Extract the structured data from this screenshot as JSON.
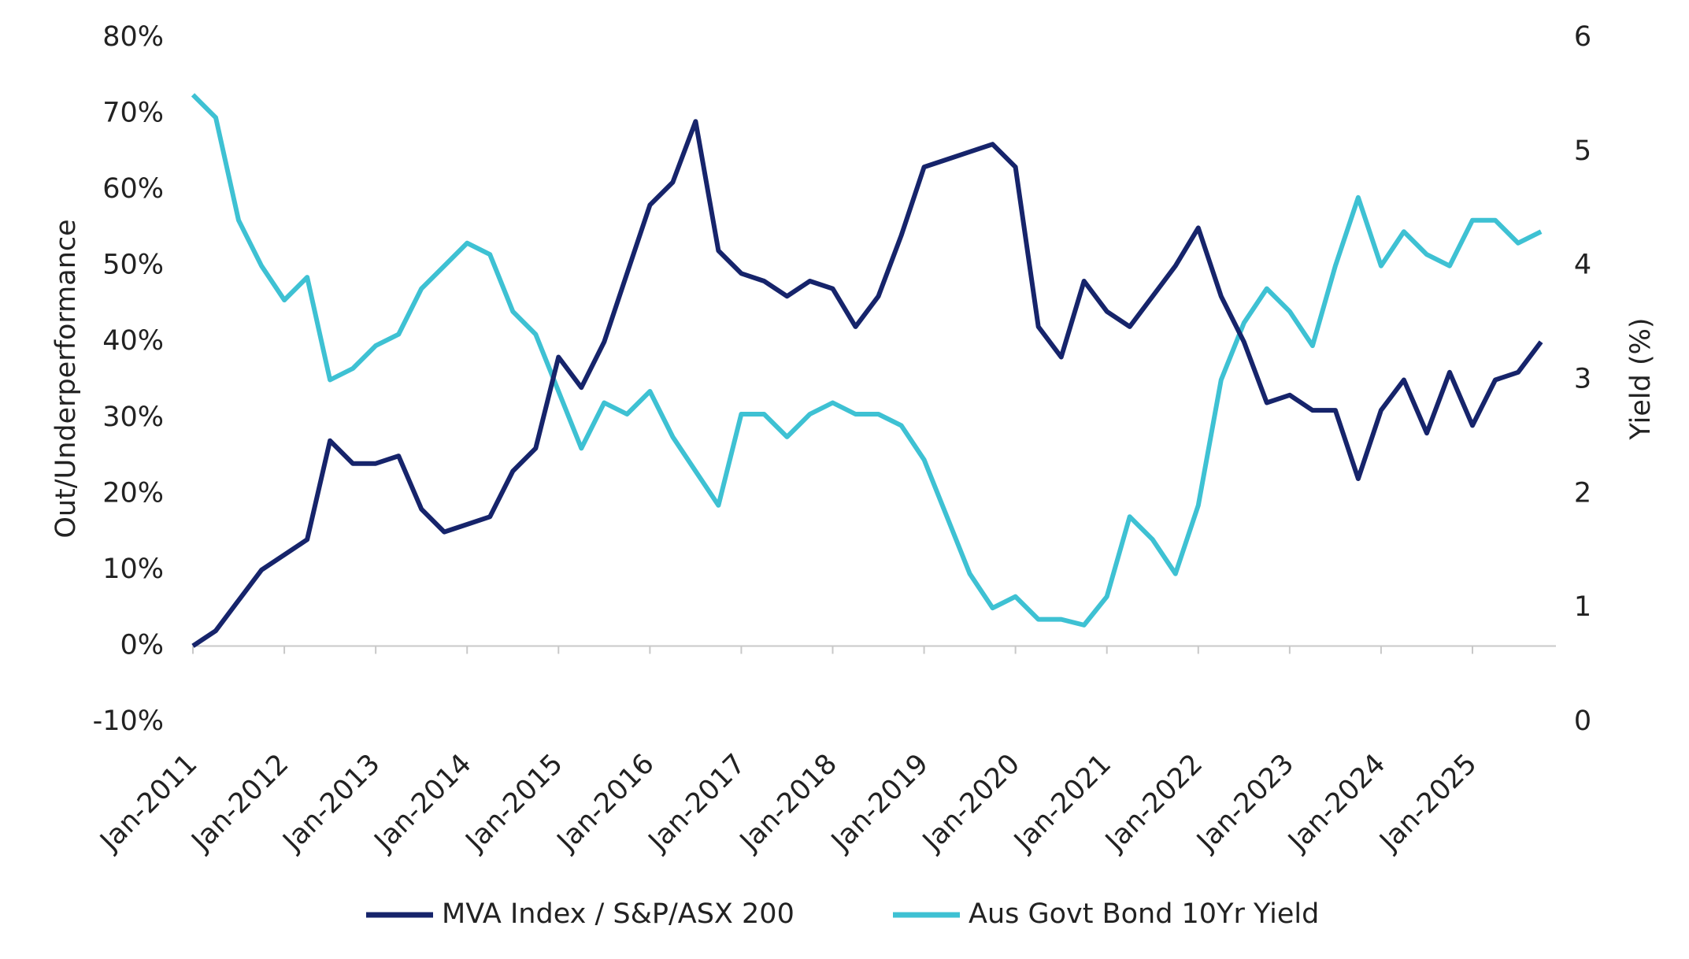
{
  "chart_data": {
    "type": "line",
    "categories": [
      "Jan-2011",
      null,
      null,
      null,
      "Jan-2012",
      null,
      null,
      null,
      "Jan-2013",
      null,
      null,
      null,
      "Jan-2014",
      null,
      null,
      null,
      "Jan-2015",
      null,
      null,
      null,
      "Jan-2016",
      null,
      null,
      null,
      "Jan-2017",
      null,
      null,
      null,
      "Jan-2018",
      null,
      null,
      null,
      "Jan-2019",
      null,
      null,
      null,
      "Jan-2020",
      null,
      null,
      null,
      "Jan-2021",
      null,
      null,
      null,
      "Jan-2022",
      null,
      null,
      null,
      "Jan-2023",
      null,
      null,
      null,
      "Jan-2024",
      null,
      null,
      null,
      "Jan-2025",
      null,
      null,
      null
    ],
    "y_label": "Out/Underperformance",
    "y2_label": "Yield (%)",
    "ylim": [
      -10,
      80
    ],
    "yticks": [
      {
        "value": -10,
        "label": "-10%"
      },
      {
        "value": 0,
        "label": "0%"
      },
      {
        "value": 10,
        "label": "10%"
      },
      {
        "value": 20,
        "label": "20%"
      },
      {
        "value": 30,
        "label": "30%"
      },
      {
        "value": 40,
        "label": "40%"
      },
      {
        "value": 50,
        "label": "50%"
      },
      {
        "value": 60,
        "label": "60%"
      },
      {
        "value": 70,
        "label": "70%"
      },
      {
        "value": 80,
        "label": "80%"
      }
    ],
    "y2lim": [
      0,
      6
    ],
    "y2ticks": [
      0,
      1,
      2,
      3,
      4,
      5,
      6
    ],
    "legend": "bottom",
    "series": [
      {
        "name": "MVA Index / S&P/ASX 200",
        "color": "#16246b",
        "values": [
          0,
          2,
          6,
          10,
          12,
          14,
          27,
          24,
          24,
          25,
          18,
          15,
          16,
          17,
          23,
          26,
          38,
          34,
          40,
          49,
          58,
          61,
          69,
          52,
          49,
          48,
          46,
          48,
          47,
          42,
          46,
          54,
          63,
          64,
          65,
          66,
          63,
          42,
          38,
          48,
          44,
          42,
          46,
          50,
          55,
          46,
          40,
          32,
          33,
          31,
          31,
          22,
          31,
          35,
          28,
          36,
          29,
          35,
          36,
          40
        ]
      },
      {
        "name": "Aus Govt Bond 10Yr Yield",
        "color": "#3ec1d3",
        "axis": "y2",
        "values": [
          5.5,
          5.3,
          4.4,
          4.0,
          3.7,
          3.9,
          3.0,
          3.1,
          3.3,
          3.4,
          3.8,
          4.0,
          4.2,
          4.1,
          3.6,
          3.4,
          2.9,
          2.4,
          2.8,
          2.7,
          2.9,
          2.5,
          2.2,
          1.9,
          2.7,
          2.7,
          2.5,
          2.7,
          2.8,
          2.7,
          2.7,
          2.6,
          2.3,
          1.8,
          1.3,
          1.0,
          1.1,
          0.9,
          0.9,
          0.85,
          1.1,
          1.8,
          1.6,
          1.3,
          1.9,
          3.0,
          3.5,
          3.8,
          3.6,
          3.3,
          4.0,
          4.6,
          4.0,
          4.3,
          4.1,
          4.0,
          4.4,
          4.4,
          4.2,
          4.3
        ]
      }
    ]
  }
}
